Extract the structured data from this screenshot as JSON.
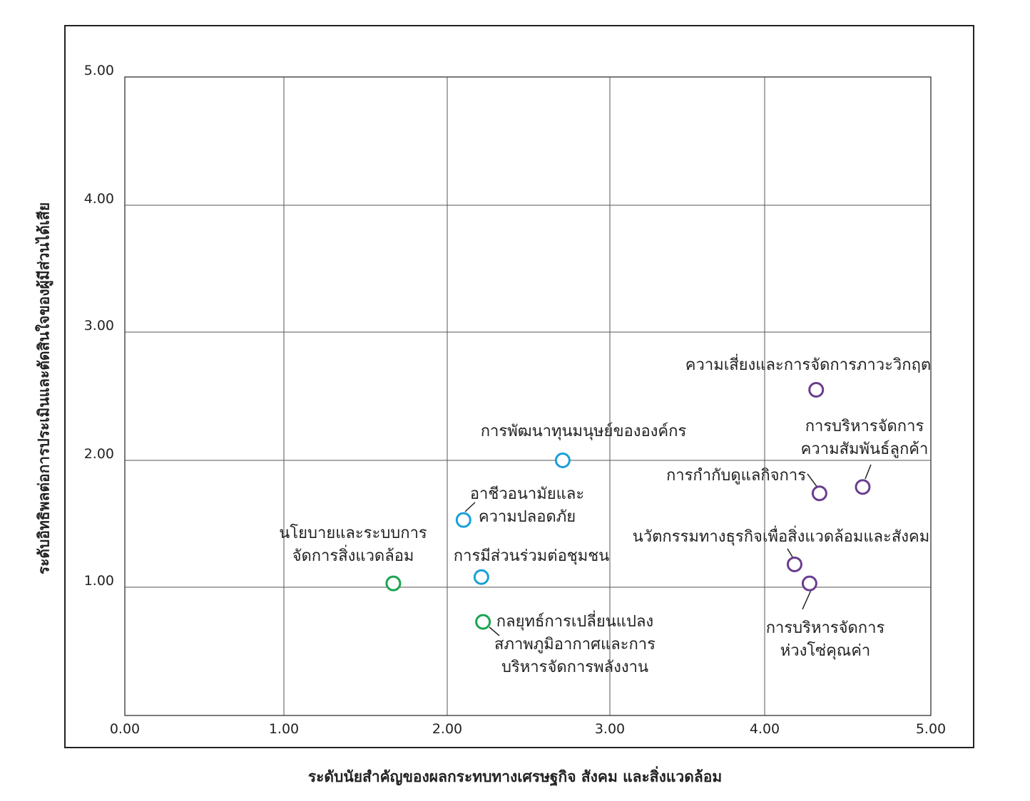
{
  "chart_data": {
    "type": "scatter",
    "xlabel": "ระดับนัยสำคัญของผลกระทบทางเศรษฐกิจ สังคม และสิ่งแวดล้อม",
    "ylabel": "ระดับอิทธิพลต่อการประเมินและตัดสินใจของผู้มีส่วนได้เสีย",
    "xlim": [
      0,
      5
    ],
    "ylim": [
      0,
      5
    ],
    "x_ticks": [
      "0.00",
      "1.00",
      "2.00",
      "3.00",
      "4.00",
      "5.00"
    ],
    "y_ticks": [
      "1.00",
      "2.00",
      "3.00",
      "4.00",
      "5.00"
    ],
    "grid": true,
    "colors": {
      "green": "#1aa550",
      "blue": "#1aa0d8",
      "purple": "#6a3d8f"
    },
    "points": [
      {
        "x": 1.67,
        "y": 1.03,
        "color": "green",
        "label_lines": [
          "นโยบายและระบบการ",
          "จัดการสิ่งแวดล้อม"
        ]
      },
      {
        "x": 2.22,
        "y": 0.73,
        "color": "green",
        "label_lines": [
          "กลยุทธ์การเปลี่ยนแปลง",
          "สภาพภูมิอากาศและการ",
          "บริหารจัดการพลังงาน"
        ]
      },
      {
        "x": 2.1,
        "y": 1.53,
        "color": "blue",
        "label_lines": [
          "อาชีวอนามัยและ",
          "ความปลอดภัย"
        ]
      },
      {
        "x": 2.21,
        "y": 1.08,
        "color": "blue",
        "label_lines": [
          "การมีส่วนร่วมต่อชุมชน"
        ]
      },
      {
        "x": 2.71,
        "y": 2.0,
        "color": "blue",
        "label_lines": [
          "การพัฒนาทุนมนุษย์ขององค์กร"
        ]
      },
      {
        "x": 4.31,
        "y": 2.55,
        "color": "purple",
        "label_lines": [
          "ความเสี่ยงและการจัดการภาวะวิกฤต"
        ]
      },
      {
        "x": 4.59,
        "y": 1.79,
        "color": "purple",
        "label_lines": [
          "การบริหารจัดการ",
          "ความสัมพันธ์ลูกค้า"
        ]
      },
      {
        "x": 4.33,
        "y": 1.74,
        "color": "purple",
        "label_lines": [
          "การกำกับดูแลกิจการ"
        ]
      },
      {
        "x": 4.18,
        "y": 1.18,
        "color": "purple",
        "label_lines": [
          "นวัตกรรมทางธุรกิจเพื่อสิ่งแวดล้อมและสังคม"
        ]
      },
      {
        "x": 4.27,
        "y": 1.03,
        "color": "purple",
        "label_lines": [
          "การบริหารจัดการ",
          "ห่วงโซ่คุณค่า"
        ]
      }
    ]
  }
}
